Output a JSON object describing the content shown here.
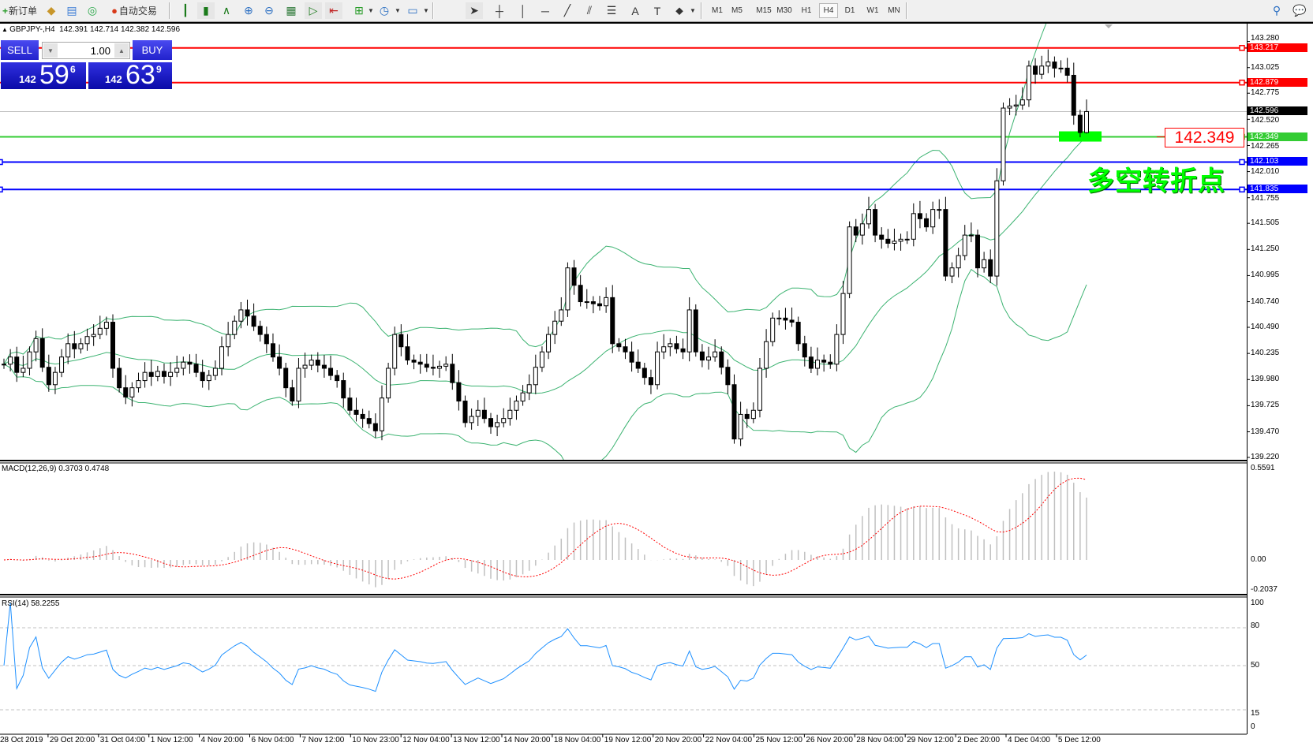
{
  "toolbar": {
    "new_order": "新订单",
    "auto_trading": "自动交易",
    "timeframes": [
      "M1",
      "M5",
      "M15",
      "M30",
      "H1",
      "H4",
      "D1",
      "W1",
      "MN"
    ],
    "active_timeframe": "H4"
  },
  "chart": {
    "info": "GBPJPY-,H4  142.391 142.714 142.382 142.596"
  },
  "trade_panel": {
    "sell_label": "SELL",
    "buy_label": "BUY",
    "lot": "1.00",
    "sell_price": {
      "big_figure": "142",
      "pips": "59",
      "fraction": "6"
    },
    "buy_price": {
      "big_figure": "142",
      "pips": "63",
      "fraction": "9"
    }
  },
  "annotation": {
    "price_label": "142.349",
    "text": "多空转折点"
  },
  "levels": [
    {
      "price": "143.217",
      "color": "#ff0000"
    },
    {
      "price": "142.879",
      "color": "#ff0000"
    },
    {
      "price": "142.596",
      "color": "#000000"
    },
    {
      "price": "142.349",
      "color": "#33cc33"
    },
    {
      "price": "142.103",
      "color": "#0000ff"
    },
    {
      "price": "141.835",
      "color": "#0000ff"
    }
  ],
  "price_axis": [
    "143.280",
    "143.025",
    "142.775",
    "142.520",
    "142.265",
    "142.010",
    "141.755",
    "141.505",
    "141.250",
    "140.995",
    "140.740",
    "140.490",
    "140.235",
    "139.980",
    "139.725",
    "139.470",
    "139.220"
  ],
  "time_axis": [
    "28 Oct 2019",
    "29 Oct 20:00",
    "31 Oct 04:00",
    "1 Nov 12:00",
    "4 Nov 20:00",
    "6 Nov 04:00",
    "7 Nov 12:00",
    "10 Nov 23:00",
    "12 Nov 04:00",
    "13 Nov 12:00",
    "14 Nov 20:00",
    "18 Nov 04:00",
    "19 Nov 12:00",
    "20 Nov 20:00",
    "22 Nov 04:00",
    "25 Nov 12:00",
    "26 Nov 20:00",
    "28 Nov 04:00",
    "29 Nov 12:00",
    "2 Dec 20:00",
    "4 Dec 04:00",
    "5 Dec 12:00"
  ],
  "macd": {
    "label": "MACD(12,26,9) 0.3703 0.4748",
    "axis": [
      "0.5591",
      "0.00",
      "-0.2037"
    ]
  },
  "rsi": {
    "label": "RSI(14) 58.2255",
    "axis": [
      "100",
      "80",
      "50",
      "15",
      "0"
    ]
  },
  "colors": {
    "bands": "#3cb371",
    "signal": "#ff0000",
    "histogram": "#c0c0c0",
    "rsi": "#1e90ff"
  },
  "chart_data": {
    "type": "candlestick",
    "symbol": "GBPJPY-",
    "timeframe": "H4",
    "ylim": [
      139.22,
      143.28
    ],
    "macd_ylim": [
      -0.2037,
      0.5591
    ],
    "rsi_ylim": [
      0,
      100
    ],
    "rsi_levels": [
      80,
      50,
      15
    ],
    "last_bar": {
      "open": 142.391,
      "high": 142.714,
      "low": 142.382,
      "close": 142.596
    },
    "closes": [
      140.13,
      140.2,
      140.05,
      140.09,
      140.25,
      140.38,
      140.1,
      139.93,
      140.05,
      140.2,
      140.33,
      140.28,
      140.33,
      140.4,
      140.42,
      140.48,
      140.54,
      140.09,
      139.9,
      139.81,
      139.9,
      139.97,
      140.05,
      140.01,
      140.06,
      140.01,
      140.05,
      140.09,
      140.15,
      140.13,
      140.05,
      139.97,
      140.02,
      140.09,
      140.3,
      140.42,
      140.55,
      140.66,
      140.6,
      140.5,
      140.42,
      140.33,
      140.2,
      140.09,
      139.9,
      139.77,
      140.09,
      140.12,
      140.17,
      140.12,
      140.09,
      140.02,
      139.97,
      139.8,
      139.68,
      139.64,
      139.6,
      139.55,
      139.48,
      139.8,
      140.09,
      140.42,
      140.3,
      140.17,
      140.15,
      140.13,
      140.1,
      140.09,
      140.11,
      140.13,
      139.95,
      139.77,
      139.56,
      139.62,
      139.68,
      139.6,
      139.52,
      139.56,
      139.6,
      139.68,
      139.77,
      139.85,
      139.93,
      140.1,
      140.25,
      140.42,
      140.55,
      140.66,
      141.07,
      140.9,
      140.74,
      140.74,
      140.72,
      140.7,
      140.78,
      140.33,
      140.3,
      140.25,
      140.15,
      140.09,
      140.0,
      139.93,
      140.25,
      140.3,
      140.33,
      140.28,
      140.25,
      140.66,
      140.25,
      140.17,
      140.2,
      140.25,
      140.1,
      139.93,
      139.4,
      139.64,
      139.6,
      139.68,
      140.09,
      140.35,
      140.58,
      140.58,
      140.56,
      140.54,
      140.33,
      140.2,
      140.09,
      140.17,
      140.15,
      140.13,
      140.42,
      140.82,
      141.47,
      141.39,
      141.5,
      141.64,
      141.39,
      141.35,
      141.31,
      141.33,
      141.35,
      141.35,
      141.6,
      141.55,
      141.47,
      141.64,
      141.64,
      140.99,
      141.07,
      141.19,
      141.39,
      141.39,
      141.07,
      141.15,
      140.99,
      141.92,
      142.63,
      142.65,
      142.66,
      142.71,
      143.04,
      142.96,
      143.04,
      143.08,
      143.02,
      143.02,
      142.95,
      142.56,
      142.391,
      142.596
    ]
  }
}
